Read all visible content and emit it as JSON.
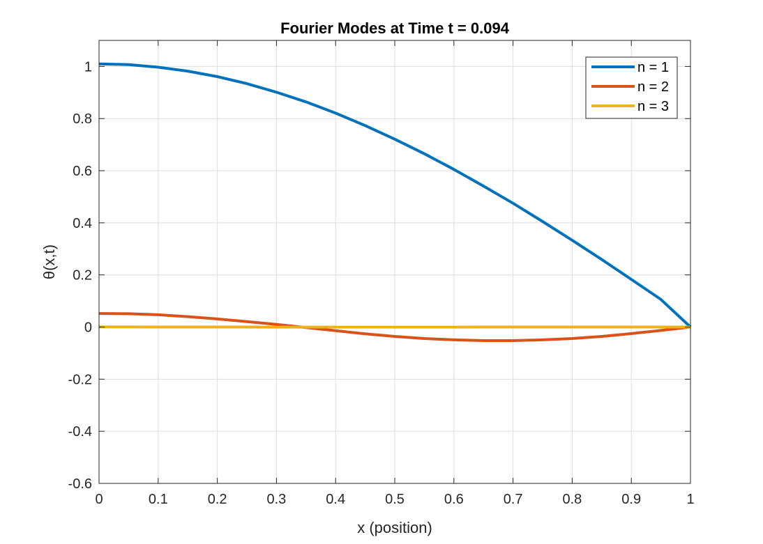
{
  "chart_data": {
    "type": "line",
    "title": "Fourier Modes at Time t = 0.094",
    "xlabel": "x (position)",
    "ylabel": "θ(x,t)",
    "xlim": [
      0,
      1
    ],
    "ylim": [
      -0.6,
      1.1
    ],
    "xticks": [
      0,
      0.1,
      0.2,
      0.3,
      0.4,
      0.5,
      0.6,
      0.7,
      0.8,
      0.9,
      1
    ],
    "xtick_labels": [
      "0",
      "0.1",
      "0.2",
      "0.3",
      "0.4",
      "0.5",
      "0.6",
      "0.7",
      "0.8",
      "0.9",
      "1"
    ],
    "yticks": [
      -0.6,
      -0.4,
      -0.2,
      0,
      0.2,
      0.4,
      0.6,
      0.8,
      1
    ],
    "ytick_labels": [
      "-0.6",
      "-0.4",
      "-0.2",
      "0",
      "0.2",
      "0.4",
      "0.6",
      "0.8",
      "1"
    ],
    "grid": true,
    "legend_position": "top-right",
    "x": [
      0,
      0.05,
      0.1,
      0.15,
      0.2,
      0.25,
      0.3,
      0.35,
      0.4,
      0.45,
      0.5,
      0.55,
      0.6,
      0.65,
      0.7,
      0.75,
      0.8,
      0.85,
      0.9,
      0.95,
      1
    ],
    "series": [
      {
        "name": "n = 1",
        "color": "#0072BD",
        "values": [
          1.01,
          1.007,
          0.997,
          0.982,
          0.961,
          0.934,
          0.901,
          0.864,
          0.821,
          0.773,
          0.721,
          0.665,
          0.605,
          0.541,
          0.475,
          0.405,
          0.333,
          0.259,
          0.183,
          0.106,
          0.0
        ]
      },
      {
        "name": "n = 2",
        "color": "#D95319",
        "values": [
          0.052,
          0.051,
          0.047,
          0.04,
          0.031,
          0.021,
          0.01,
          -0.002,
          -0.014,
          -0.026,
          -0.036,
          -0.044,
          -0.049,
          -0.052,
          -0.052,
          -0.049,
          -0.044,
          -0.036,
          -0.025,
          -0.013,
          0.0
        ]
      },
      {
        "name": "n = 3",
        "color": "#EDB120",
        "values": [
          0.0003,
          0.0003,
          0.0002,
          0.0001,
          0.0001,
          0.0,
          -0.0001,
          -0.0001,
          -0.0002,
          -0.0002,
          -0.0002,
          -0.0002,
          -0.0001,
          0.0,
          0.0001,
          0.0002,
          0.0002,
          0.0002,
          0.0001,
          0.0,
          0.0
        ]
      }
    ]
  }
}
